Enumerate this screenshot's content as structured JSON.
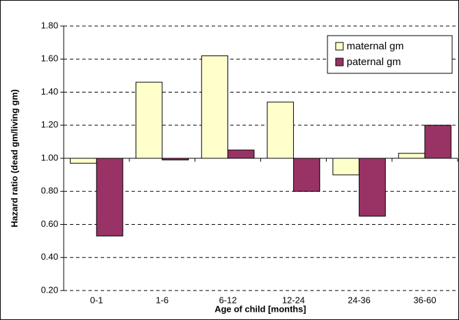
{
  "chart_data": {
    "type": "bar",
    "y_label": "Hazard ratio (dead gm/living gm)",
    "x_label": "Age of child [months]",
    "categories": [
      "0-1",
      "1-6",
      "6-12",
      "12-24",
      "24-36",
      "36-60"
    ],
    "series": [
      {
        "name": "maternal gm",
        "color": "#ffffcc",
        "values": [
          0.97,
          1.46,
          1.62,
          1.34,
          0.9,
          1.03
        ]
      },
      {
        "name": "paternal gm",
        "color": "#993366",
        "values": [
          0.53,
          0.99,
          1.05,
          0.8,
          0.65,
          1.2
        ]
      }
    ],
    "ylim": [
      0.2,
      1.8
    ],
    "yticks": [
      {
        "value": 0.2,
        "label": "0.20"
      },
      {
        "value": 0.4,
        "label": "0.40"
      },
      {
        "value": 0.6,
        "label": "0.60"
      },
      {
        "value": 0.8,
        "label": "0.80"
      },
      {
        "value": 1.0,
        "label": "1.00"
      },
      {
        "value": 1.2,
        "label": "1.20"
      },
      {
        "value": 1.4,
        "label": "1.40"
      },
      {
        "value": 1.6,
        "label": "1.60"
      },
      {
        "value": 1.8,
        "label": "1.80"
      }
    ],
    "x_axis_crosses": 1.0,
    "grid": true,
    "legend": "top-right"
  }
}
